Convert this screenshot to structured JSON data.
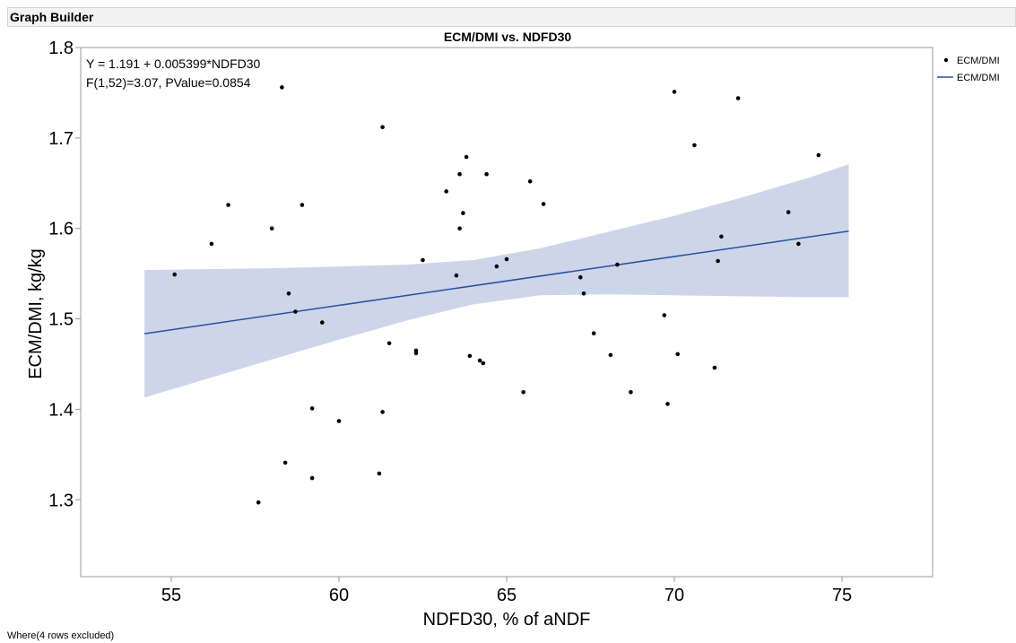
{
  "window": {
    "title": "Graph Builder"
  },
  "footer": {
    "note": "Where(4 rows excluded)"
  },
  "colors": {
    "points": "#000000",
    "fit_line": "#2a4fa0",
    "confidence_band": "#cdd6e8",
    "frame": "#9a9a9a"
  },
  "chart_data": {
    "type": "scatter",
    "title": "ECM/DMI vs. NDFD30",
    "xlabel": "NDFD30, % of aNDF",
    "ylabel": "ECM/DMI, kg/kg",
    "xlim": [
      52.3,
      77.7
    ],
    "ylim": [
      1.215,
      1.8
    ],
    "xticks": [
      55,
      60,
      65,
      70,
      75
    ],
    "yticks": [
      1.3,
      1.4,
      1.5,
      1.6,
      1.7,
      1.8
    ],
    "annotation": [
      "Y = 1.191 + 0.005399*NDFD30",
      "F(1,52)=3.07, PValue=0.0854"
    ],
    "legend": {
      "position": "top-right",
      "entries": [
        {
          "label": "ECM/DMI",
          "marker": "point"
        },
        {
          "label": "ECM/DMI",
          "marker": "line"
        }
      ]
    },
    "fit": {
      "intercept": 1.191,
      "slope": 0.005399,
      "x_range": [
        54.2,
        75.2
      ]
    },
    "confidence_band": [
      {
        "x": 54.2,
        "lower": 1.413,
        "upper": 1.554
      },
      {
        "x": 56,
        "lower": 1.433,
        "upper": 1.555
      },
      {
        "x": 58,
        "lower": 1.455,
        "upper": 1.556
      },
      {
        "x": 60,
        "lower": 1.477,
        "upper": 1.558
      },
      {
        "x": 62,
        "lower": 1.498,
        "upper": 1.56
      },
      {
        "x": 64,
        "lower": 1.516,
        "upper": 1.565
      },
      {
        "x": 66,
        "lower": 1.526,
        "upper": 1.578
      },
      {
        "x": 68,
        "lower": 1.527,
        "upper": 1.596
      },
      {
        "x": 70,
        "lower": 1.526,
        "upper": 1.614
      },
      {
        "x": 72,
        "lower": 1.525,
        "upper": 1.634
      },
      {
        "x": 74,
        "lower": 1.524,
        "upper": 1.656
      },
      {
        "x": 75.2,
        "lower": 1.524,
        "upper": 1.671
      }
    ],
    "points": [
      {
        "x": 55.1,
        "y": 1.549
      },
      {
        "x": 56.2,
        "y": 1.583
      },
      {
        "x": 56.7,
        "y": 1.626
      },
      {
        "x": 57.6,
        "y": 1.297
      },
      {
        "x": 58.0,
        "y": 1.6
      },
      {
        "x": 58.3,
        "y": 1.756
      },
      {
        "x": 58.4,
        "y": 1.341
      },
      {
        "x": 58.5,
        "y": 1.528
      },
      {
        "x": 58.7,
        "y": 1.508
      },
      {
        "x": 58.9,
        "y": 1.626
      },
      {
        "x": 59.2,
        "y": 1.401
      },
      {
        "x": 59.2,
        "y": 1.324
      },
      {
        "x": 59.5,
        "y": 1.496
      },
      {
        "x": 60.0,
        "y": 1.387
      },
      {
        "x": 61.2,
        "y": 1.329
      },
      {
        "x": 61.3,
        "y": 1.397
      },
      {
        "x": 61.3,
        "y": 1.712
      },
      {
        "x": 61.5,
        "y": 1.473
      },
      {
        "x": 62.3,
        "y": 1.465
      },
      {
        "x": 62.3,
        "y": 1.462
      },
      {
        "x": 62.5,
        "y": 1.565
      },
      {
        "x": 63.2,
        "y": 1.641
      },
      {
        "x": 63.5,
        "y": 1.548
      },
      {
        "x": 63.6,
        "y": 1.66
      },
      {
        "x": 63.6,
        "y": 1.6
      },
      {
        "x": 63.7,
        "y": 1.617
      },
      {
        "x": 63.8,
        "y": 1.679
      },
      {
        "x": 63.9,
        "y": 1.459
      },
      {
        "x": 64.2,
        "y": 1.454
      },
      {
        "x": 64.3,
        "y": 1.451
      },
      {
        "x": 64.4,
        "y": 1.66
      },
      {
        "x": 64.7,
        "y": 1.558
      },
      {
        "x": 65.0,
        "y": 1.566
      },
      {
        "x": 65.5,
        "y": 1.419
      },
      {
        "x": 65.7,
        "y": 1.652
      },
      {
        "x": 66.1,
        "y": 1.627
      },
      {
        "x": 67.2,
        "y": 1.546
      },
      {
        "x": 67.3,
        "y": 1.528
      },
      {
        "x": 67.6,
        "y": 1.484
      },
      {
        "x": 68.1,
        "y": 1.46
      },
      {
        "x": 68.3,
        "y": 1.56
      },
      {
        "x": 68.7,
        "y": 1.419
      },
      {
        "x": 69.7,
        "y": 1.504
      },
      {
        "x": 69.8,
        "y": 1.406
      },
      {
        "x": 70.0,
        "y": 1.751
      },
      {
        "x": 70.1,
        "y": 1.461
      },
      {
        "x": 70.6,
        "y": 1.692
      },
      {
        "x": 71.2,
        "y": 1.446
      },
      {
        "x": 71.3,
        "y": 1.564
      },
      {
        "x": 71.4,
        "y": 1.591
      },
      {
        "x": 71.9,
        "y": 1.744
      },
      {
        "x": 73.4,
        "y": 1.618
      },
      {
        "x": 73.7,
        "y": 1.583
      },
      {
        "x": 74.3,
        "y": 1.681
      }
    ]
  }
}
